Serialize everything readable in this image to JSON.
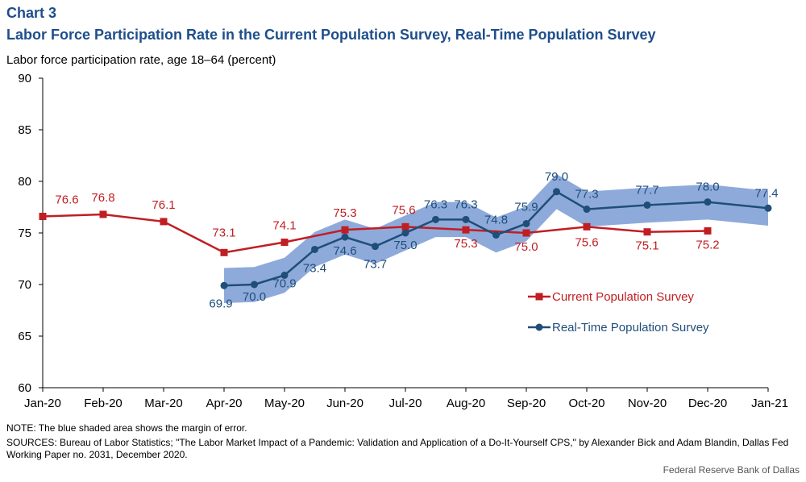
{
  "header": {
    "chart_number": "Chart 3",
    "title": "Labor Force Participation Rate in the Current Population Survey, Real-Time Population Survey",
    "y_axis_title": "Labor force participation rate, age 18–64 (percent)"
  },
  "footer": {
    "note": "NOTE: The blue shaded area shows the margin of error.",
    "sources": "SOURCES: Bureau of Labor Statistics; \"The Labor Market Impact of a Pandemic: Validation and Application of a Do-It-Yourself CPS,\" by Alexander Bick and Adam Blandin, Dallas Fed Working Paper no. 2031, December 2020.",
    "credit": "Federal Reserve Bank of Dallas"
  },
  "colors": {
    "cps": "#c01e23",
    "rps": "#1f4e79",
    "band": "#8eaadb",
    "title": "#1f4e8c"
  },
  "chart_data": {
    "type": "line",
    "ylim": [
      60,
      90
    ],
    "yticks": [
      60,
      65,
      70,
      75,
      80,
      85,
      90
    ],
    "xlim": [
      0,
      12
    ],
    "xticks": [
      0,
      1,
      2,
      3,
      4,
      5,
      6,
      7,
      8,
      9,
      10,
      11,
      12
    ],
    "xtick_labels": [
      "Jan-20",
      "Feb-20",
      "Mar-20",
      "Apr-20",
      "May-20",
      "Jun-20",
      "Jul-20",
      "Aug-20",
      "Sep-20",
      "Oct-20",
      "Nov-20",
      "Dec-20",
      "Jan-21"
    ],
    "grid": false,
    "legend_position": "middle-right",
    "series": [
      {
        "name": "Current Population Survey",
        "x": [
          0,
          1,
          2,
          3,
          4,
          5,
          6,
          7,
          8,
          9,
          10,
          11
        ],
        "values": [
          76.6,
          76.8,
          76.1,
          73.1,
          74.1,
          75.3,
          75.6,
          75.3,
          75.0,
          75.6,
          75.1,
          75.2
        ],
        "labels": [
          "76.6",
          "76.8",
          "76.1",
          "73.1",
          "74.1",
          "75.3",
          "75.6",
          "75.3",
          "75.0",
          "75.6",
          "75.1",
          "75.2"
        ]
      },
      {
        "name": "Real-Time Population Survey",
        "x": [
          3,
          3.5,
          4,
          4.5,
          5,
          5.5,
          6,
          6.5,
          7,
          7.5,
          8,
          8.5,
          9,
          10,
          11,
          12
        ],
        "values": [
          69.9,
          70.0,
          70.9,
          73.4,
          74.6,
          73.7,
          75.0,
          76.3,
          76.3,
          74.8,
          75.9,
          79.0,
          77.3,
          77.7,
          78.0,
          77.4
        ],
        "labels": [
          "69.9",
          "70.0",
          "70.9",
          "73.4",
          "74.6",
          "73.7",
          "75.0",
          "76.3",
          "76.3",
          "74.8",
          "75.9",
          "79.0",
          "77.3",
          "77.7",
          "78.0",
          "77.4"
        ],
        "margin_of_error": 1.7
      }
    ]
  }
}
